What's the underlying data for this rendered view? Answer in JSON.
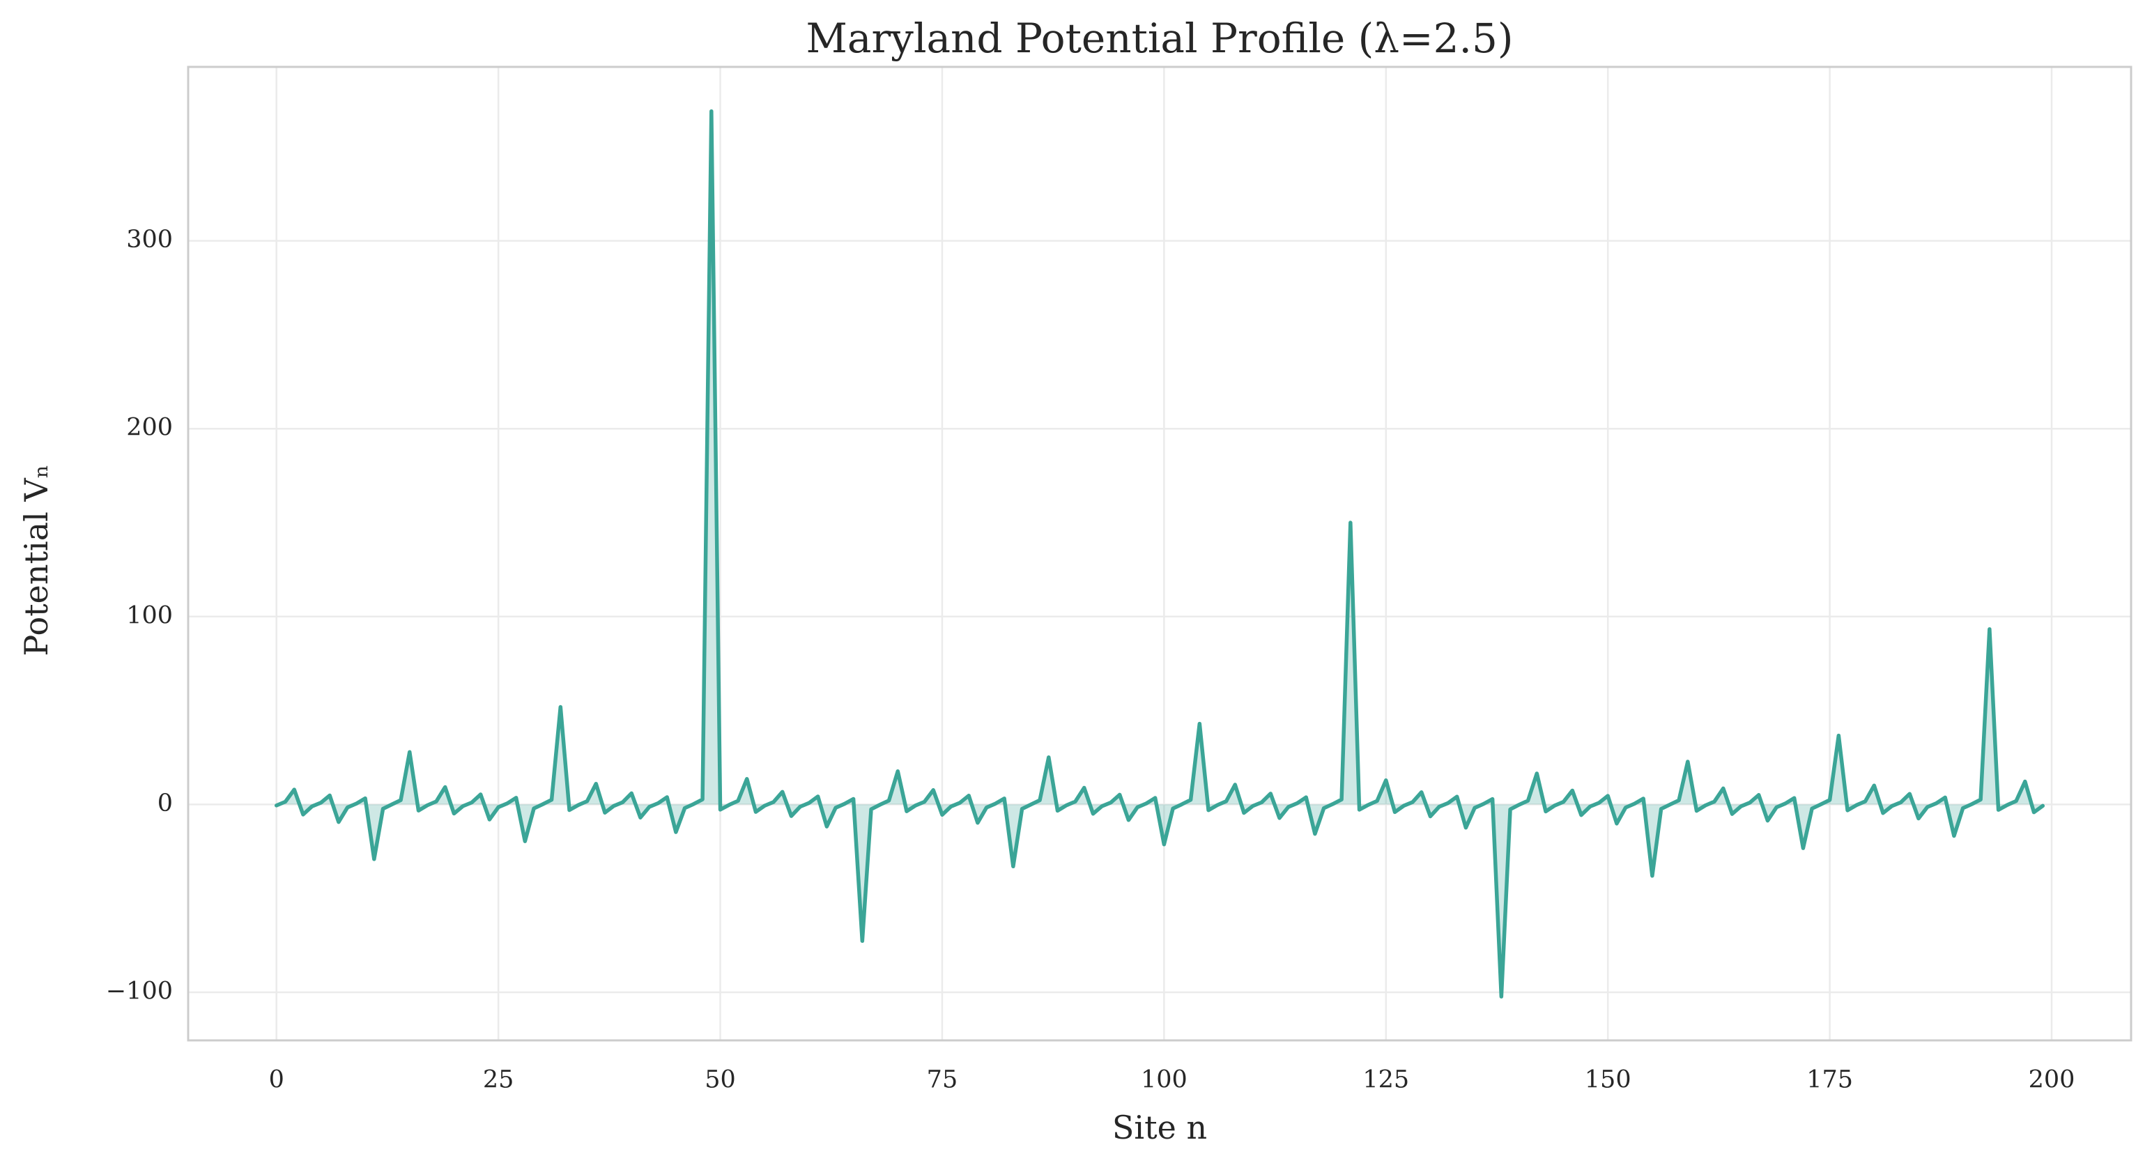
{
  "chart_data": {
    "type": "line",
    "title": "Maryland Potential Profile (λ=2.5)",
    "x_label": "Site n",
    "y_label": "Potential Vₙ",
    "x": [
      0,
      1,
      2,
      3,
      4,
      5,
      6,
      7,
      8,
      9,
      10,
      11,
      12,
      13,
      14,
      15,
      16,
      17,
      18,
      19,
      20,
      21,
      22,
      23,
      24,
      25,
      26,
      27,
      28,
      29,
      30,
      31,
      32,
      33,
      34,
      35,
      36,
      37,
      38,
      39,
      40,
      41,
      42,
      43,
      44,
      45,
      46,
      47,
      48,
      49,
      50,
      51,
      52,
      53,
      54,
      55,
      56,
      57,
      58,
      59,
      60,
      61,
      62,
      63,
      64,
      65,
      66,
      67,
      68,
      69,
      70,
      71,
      72,
      73,
      74,
      75,
      76,
      77,
      78,
      79,
      80,
      81,
      82,
      83,
      84,
      85,
      86,
      87,
      88,
      89,
      90,
      91,
      92,
      93,
      94,
      95,
      96,
      97,
      98,
      99,
      100,
      101,
      102,
      103,
      104,
      105,
      106,
      107,
      108,
      109,
      110,
      111,
      112,
      113,
      114,
      115,
      116,
      117,
      118,
      119,
      120,
      121,
      122,
      123,
      124,
      125,
      126,
      127,
      128,
      129,
      130,
      131,
      132,
      133,
      134,
      135,
      136,
      137,
      138,
      139,
      140,
      141,
      142,
      143,
      144,
      145,
      146,
      147,
      148,
      149,
      150,
      151,
      152,
      153,
      154,
      155,
      156,
      157,
      158,
      159,
      160,
      161,
      162,
      163,
      164,
      165,
      166,
      167,
      168,
      169,
      170,
      171,
      172,
      173,
      174,
      175,
      176,
      177,
      178,
      179,
      180,
      181,
      182,
      183,
      184,
      185,
      186,
      187,
      188,
      189,
      190,
      191,
      192,
      193,
      194,
      195,
      196,
      197,
      198,
      199
    ],
    "values": [
      -0.55,
      1.44,
      7.91,
      -5.37,
      -1.04,
      0.91,
      4.79,
      -9.37,
      -1.6,
      0.44,
      3.25,
      -29.12,
      -2.3,
      0,
      2.28,
      27.88,
      -3.27,
      -0.45,
      1.58,
      9.23,
      -4.84,
      -0.92,
      1.03,
      5.32,
      -8.02,
      -1.46,
      0.54,
      3.54,
      -19.59,
      -2.12,
      0.1,
      2.48,
      51.87,
      -3.01,
      -0.34,
      1.73,
      11.01,
      -4.38,
      -0.8,
      1.15,
      5.94,
      -6.99,
      -1.32,
      0.65,
      3.87,
      -14.72,
      -1.94,
      0.2,
      2.69,
      369,
      -2.77,
      -0.24,
      1.89,
      13.59,
      -3.99,
      -0.69,
      1.28,
      6.7,
      -6.18,
      -1.19,
      0.77,
      4.25,
      -11.76,
      -1.78,
      0.31,
      2.93,
      -72.67,
      -2.55,
      -0.13,
      2.06,
      17.65,
      -3.65,
      -0.58,
      1.41,
      7.65,
      -5.51,
      -1.07,
      0.88,
      4.68,
      -9.76,
      -1.63,
      0.41,
      3.18,
      -32.97,
      -2.35,
      -0.03,
      2.24,
      25.07,
      -3.34,
      -0.47,
      1.55,
      8.88,
      -4.96,
      -0.95,
      1.0,
      5.18,
      -8.31,
      -1.49,
      0.52,
      3.47,
      -21.28,
      -2.16,
      0.07,
      2.43,
      42.96,
      -3.07,
      -0.37,
      1.7,
      10.52,
      -4.49,
      -0.83,
      1.12,
      5.78,
      -7.22,
      -1.35,
      0.63,
      3.79,
      -15.67,
      -1.98,
      0.18,
      2.64,
      150,
      -2.82,
      -0.26,
      1.85,
      12.86,
      -4.08,
      -0.72,
      1.24,
      6.5,
      -6.36,
      -1.21,
      0.74,
      4.15,
      -12.36,
      -1.82,
      0.28,
      2.87,
      -102.3,
      -2.6,
      -0.16,
      2.02,
      16.47,
      -3.73,
      -0.61,
      1.38,
      7.4,
      -5.66,
      -1.1,
      0.85,
      4.57,
      -10.18,
      -1.67,
      0.39,
      3.12,
      -37.99,
      -2.39,
      -0.05,
      2.19,
      22.77,
      -3.41,
      -0.5,
      1.51,
      8.55,
      -5.08,
      -0.98,
      0.97,
      5.05,
      -8.62,
      -1.52,
      0.49,
      3.4,
      -23.28,
      -2.2,
      0.05,
      2.38,
      36.65,
      -3.13,
      -0.39,
      1.66,
      10.08,
      -4.59,
      -0.86,
      1.09,
      5.63,
      -7.46,
      -1.38,
      0.6,
      3.71,
      -16.74,
      -2.0,
      0.15,
      2.59,
      93.3,
      -2.88,
      -0.29,
      1.81,
      12.21,
      -4.17,
      -0.74
    ],
    "color": "#3ba597",
    "fill_area": true,
    "xlim": [
      -9.95,
      208.95
    ],
    "ylim": [
      -125.6,
      392.6
    ],
    "xticks": [
      0,
      25,
      50,
      75,
      100,
      125,
      150,
      175,
      200
    ],
    "yticks": [
      {
        "value": -100,
        "label": "−100"
      },
      0,
      100,
      200,
      300
    ],
    "grid": true
  }
}
